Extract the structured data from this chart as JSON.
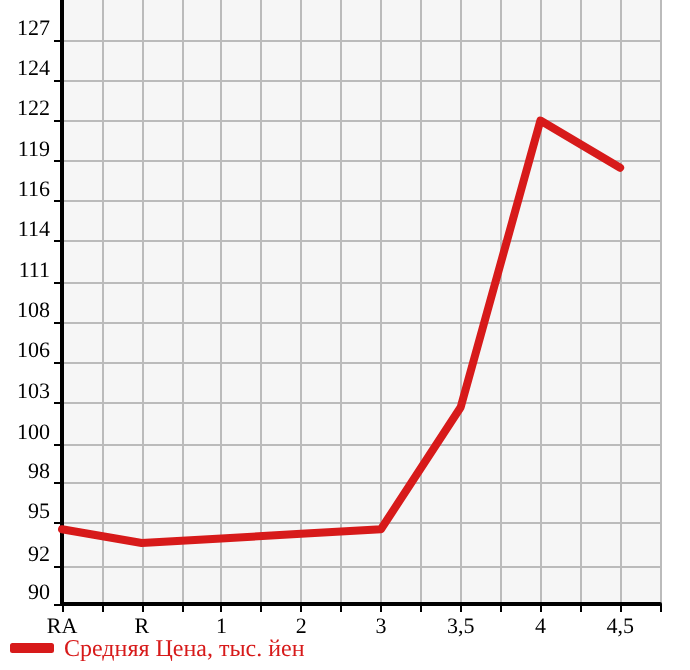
{
  "chart_data": {
    "type": "line",
    "categories": [
      "RA",
      "R",
      "1",
      "2",
      "3",
      "3,5",
      "4",
      "4,5"
    ],
    "series": [
      {
        "name": "Средняя Цена, тыс. йен",
        "color": "#d71a1a",
        "values": [
          94.9,
          94.0,
          94.3,
          94.6,
          94.9,
          102.9,
          121.7,
          118.6
        ]
      }
    ],
    "ylim": [
      90,
      129.6
    ],
    "yticks": [
      90,
      {
        "value": 92.49,
        "label": "92"
      },
      {
        "value": 95.29,
        "label": "95"
      },
      {
        "value": 97.93,
        "label": "98"
      },
      {
        "value": 100.49,
        "label": "100"
      },
      {
        "value": 103.21,
        "label": "103"
      },
      {
        "value": 105.86,
        "label": "106"
      },
      {
        "value": 108.5,
        "label": "108"
      },
      {
        "value": 111.14,
        "label": "111"
      },
      {
        "value": 113.79,
        "label": "114"
      },
      {
        "value": 116.43,
        "label": "116"
      },
      {
        "value": 119.07,
        "label": "119"
      },
      {
        "value": 121.71,
        "label": "122"
      },
      {
        "value": 124.36,
        "label": "124"
      },
      127
    ],
    "grid": true,
    "legend": "bottom left",
    "marker": "none",
    "line_style": "solid"
  }
}
